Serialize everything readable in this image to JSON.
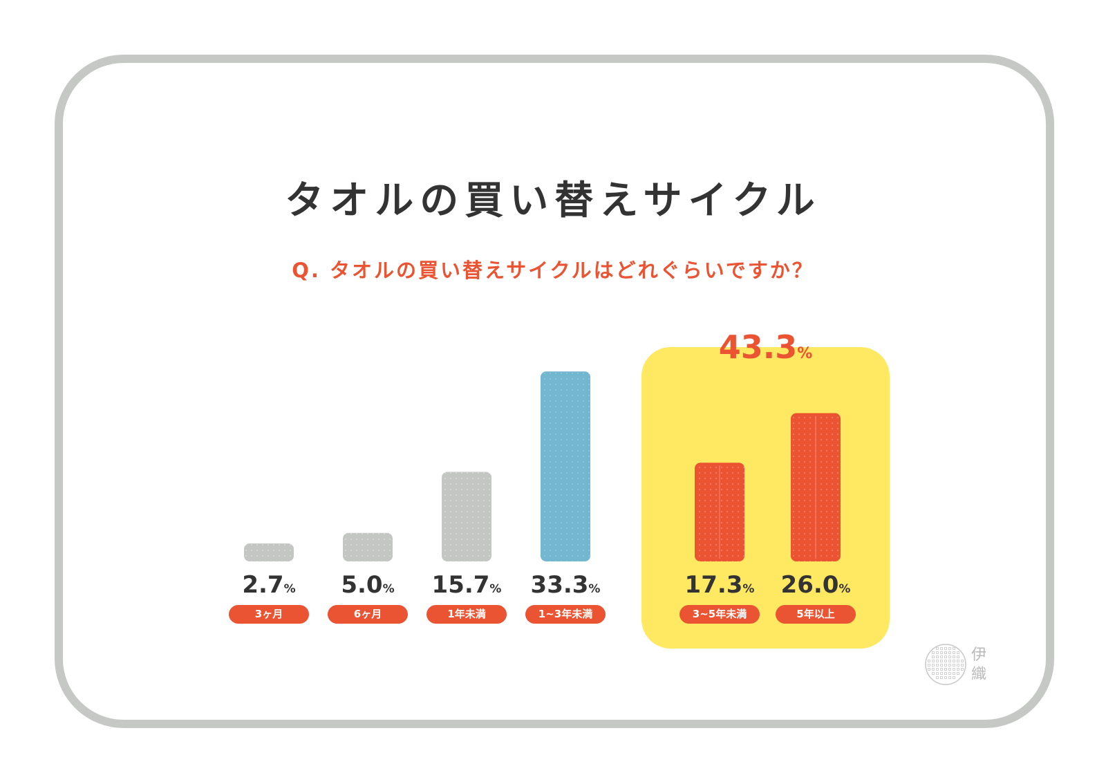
{
  "title": "タオルの買い替えサイクル",
  "question": "Q. タオルの買い替えサイクルはどれぐらいですか？",
  "unit": "%",
  "highlight_total": {
    "value": "43.3",
    "unit": "%"
  },
  "colors": {
    "bar_gray": "#c4c6c4",
    "bar_blue": "#72b6d0",
    "bar_red": "#ea5432",
    "highlight_bg": "#ffe862",
    "label_bg": "#ea5432",
    "frame": "#c6c8c6",
    "text_dark": "#333333"
  },
  "chart_data": {
    "type": "bar",
    "title": "タオルの買い替えサイクル",
    "categories": [
      "3ヶ月",
      "6ヶ月",
      "1年未満",
      "1~3年未満",
      "3~5年未満",
      "5年以上"
    ],
    "values": [
      2.7,
      5.0,
      15.7,
      33.3,
      17.3,
      26.0
    ],
    "value_labels": [
      "2.7",
      "5.0",
      "15.7",
      "33.3",
      "17.3",
      "26.0"
    ],
    "bar_colors": [
      "gray",
      "gray",
      "gray",
      "blue",
      "red",
      "red"
    ],
    "highlighted_categories": [
      "3~5年未満",
      "5年以上"
    ],
    "highlighted_total": 43.3,
    "xlabel": "",
    "ylabel": "",
    "grid": false
  },
  "logo": {
    "name": "伊織",
    "icon": "dotted-circle-logo-icon"
  }
}
